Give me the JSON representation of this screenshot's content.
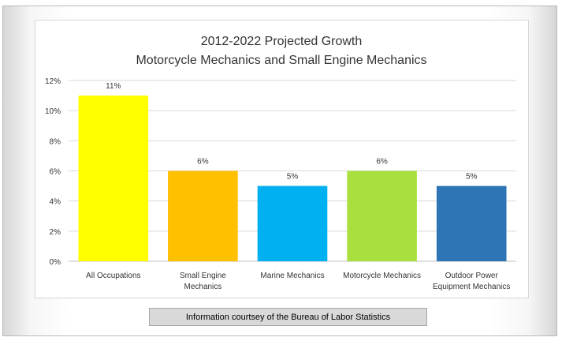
{
  "chart_data": {
    "type": "bar",
    "title": "2012-2022 Projected Growth",
    "subtitle": "Motorcycle Mechanics and Small Engine Mechanics",
    "categories": [
      "All Occupations",
      "Small Engine Mechanics",
      "Marine Mechanics",
      "Motorcycle Mechanics",
      "Outdoor Power Equipment Mechanics"
    ],
    "category_lines": [
      [
        "All Occupations"
      ],
      [
        "Small Engine",
        "Mechanics"
      ],
      [
        "Marine Mechanics"
      ],
      [
        "Motorcycle Mechanics"
      ],
      [
        "Outdoor Power",
        "Equipment Mechanics"
      ]
    ],
    "values": [
      11,
      6,
      5,
      6,
      5
    ],
    "data_labels": [
      "11%",
      "6%",
      "5%",
      "6%",
      "5%"
    ],
    "bar_colors": [
      "#ffff00",
      "#ffc000",
      "#00b0f0",
      "#a9e040",
      "#2e75b6"
    ],
    "ylim": [
      0,
      12
    ],
    "yticks": [
      0,
      2,
      4,
      6,
      8,
      10,
      12
    ],
    "ytick_labels": [
      "0%",
      "2%",
      "4%",
      "6%",
      "8%",
      "10%",
      "12%"
    ],
    "grid": true,
    "xlabel": "",
    "ylabel": ""
  },
  "caption": "Information courtsey of the Bureau of Labor Statistics"
}
